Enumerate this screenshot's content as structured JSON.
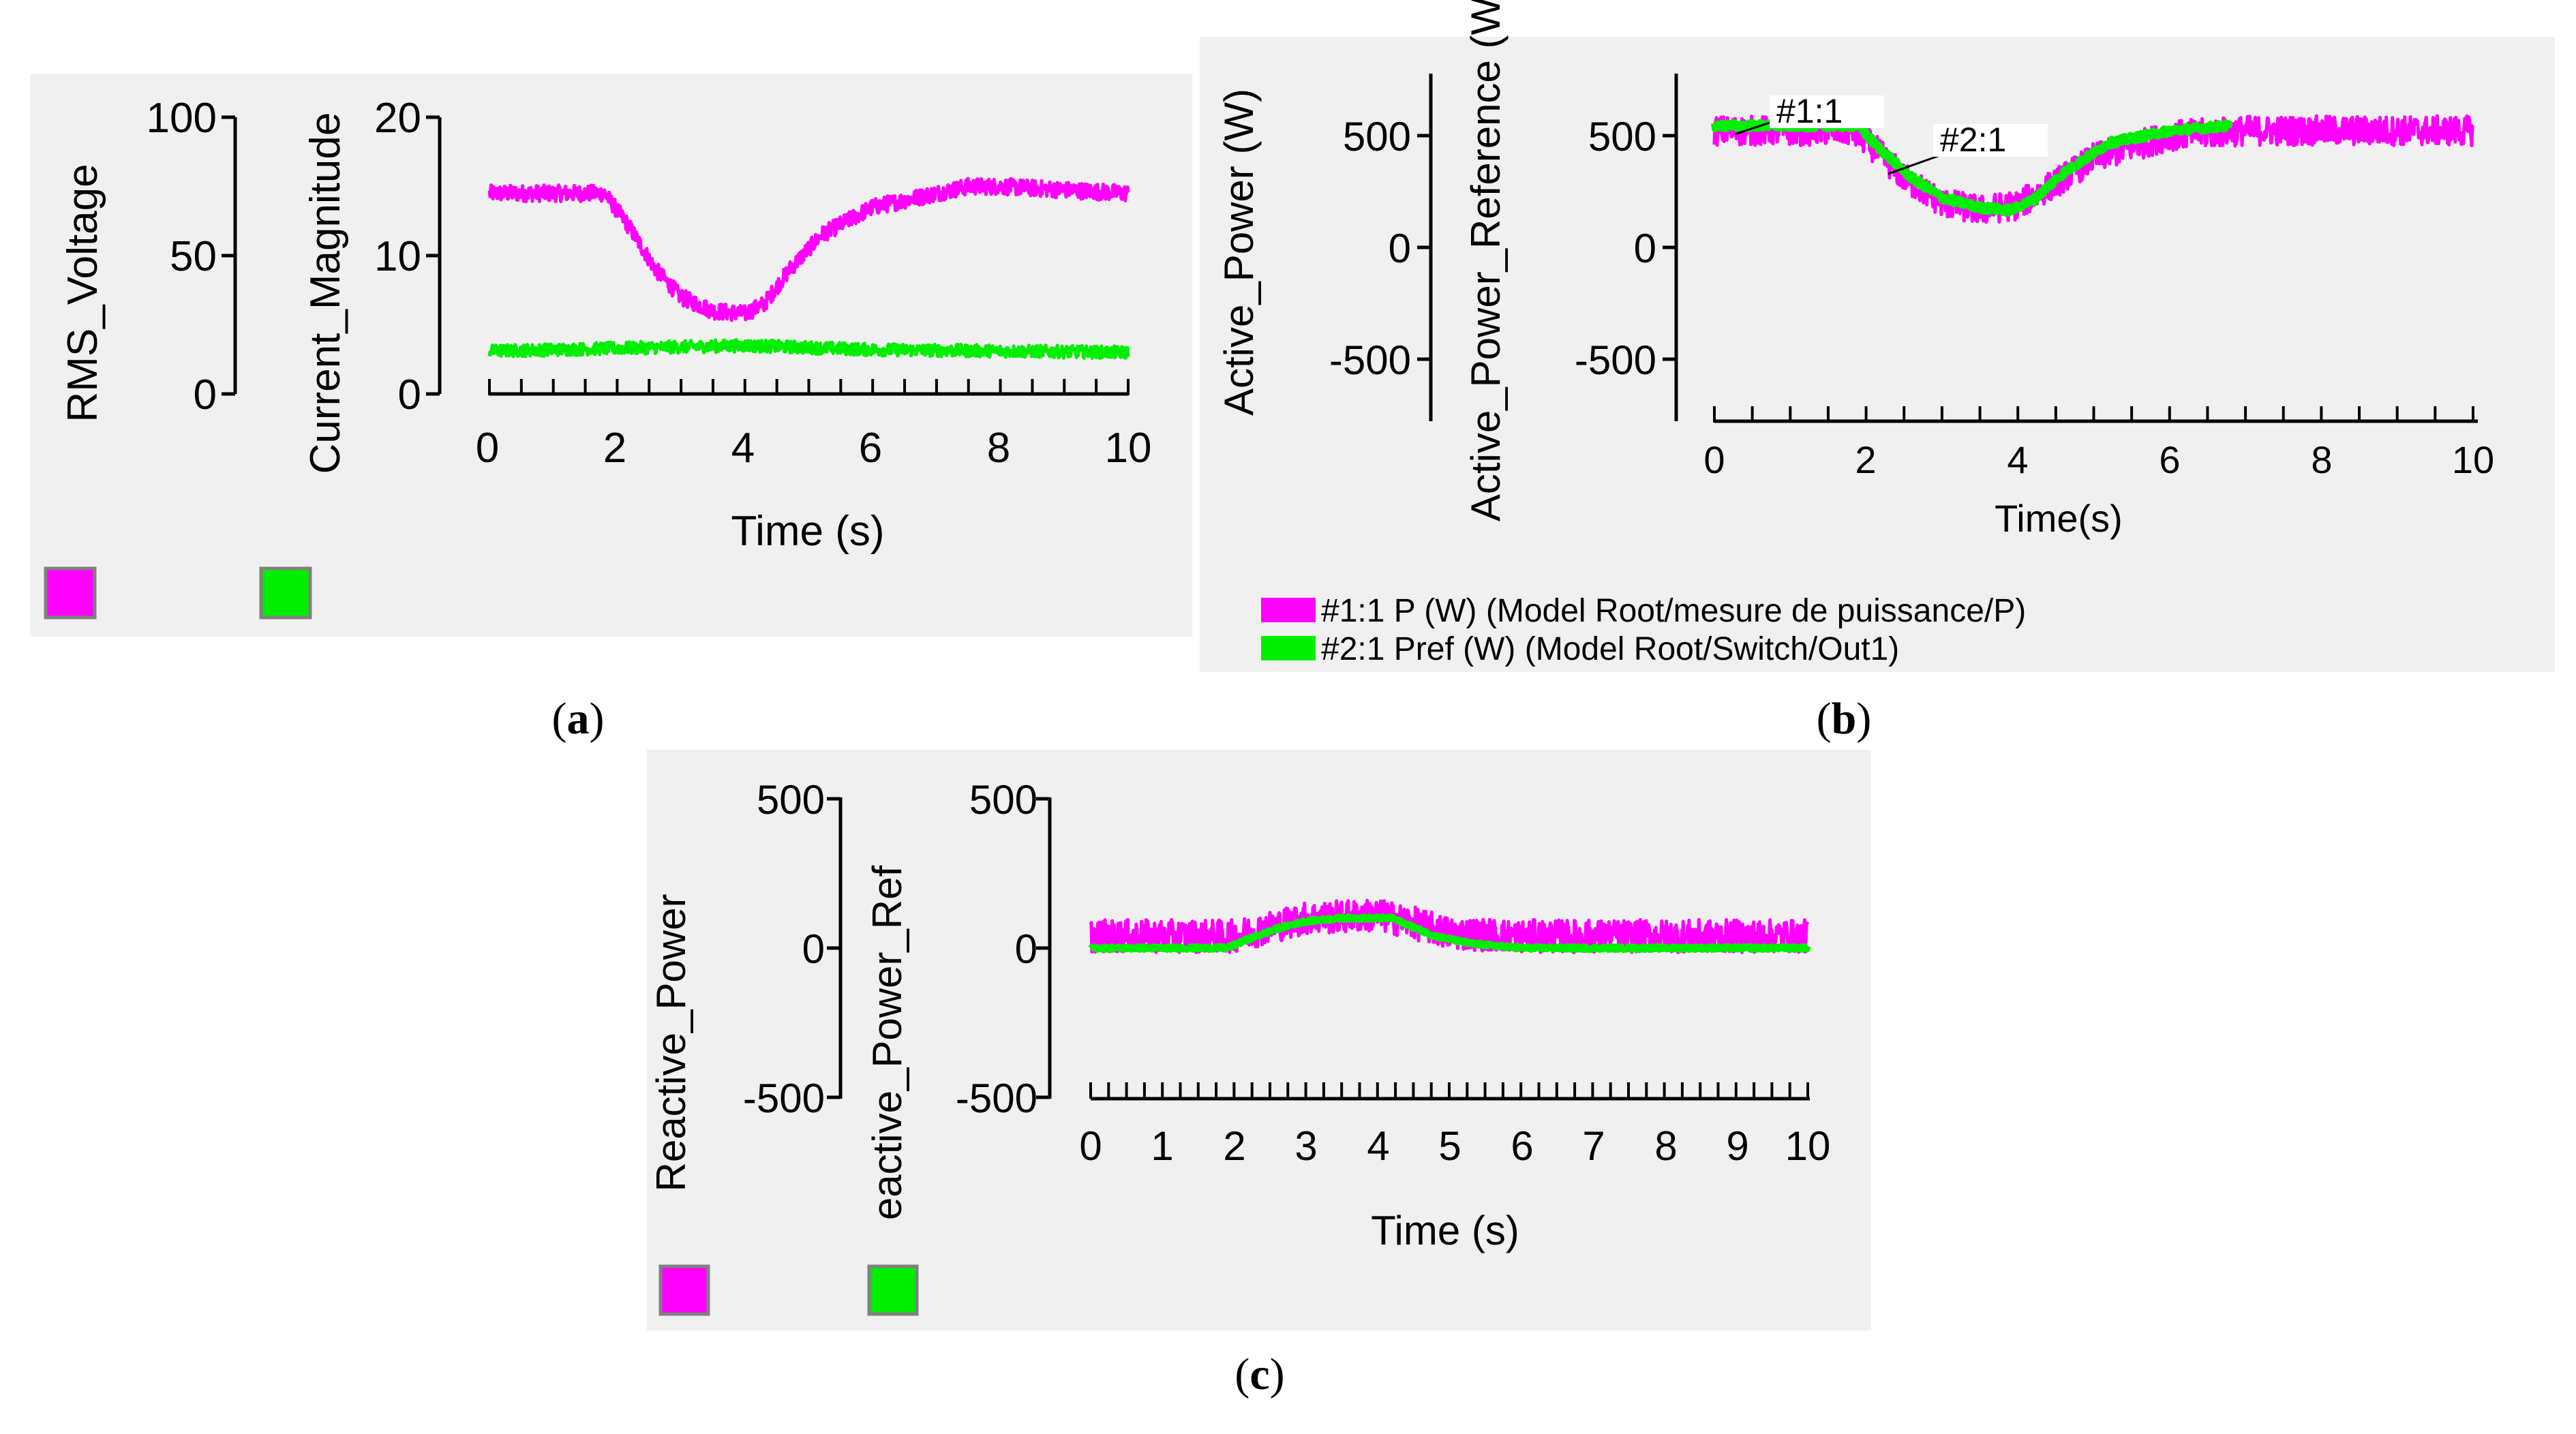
{
  "chart_data": [
    {
      "id": "a",
      "type": "line",
      "caption": "a",
      "xlabel": "Time (s)",
      "xlim": [
        0,
        10
      ],
      "x_ticks": [
        0,
        2,
        4,
        6,
        8,
        10
      ],
      "axes": [
        {
          "label": "RMS_Voltage",
          "ylim": [
            0,
            100
          ],
          "ticks": [
            0,
            50,
            100
          ]
        },
        {
          "label": "Current_Magnitude",
          "ylim": [
            0,
            20
          ],
          "ticks": [
            0,
            10,
            20
          ]
        }
      ],
      "series": [
        {
          "name": "RMS_Voltage",
          "color": "#ff00ff",
          "noise": 0.6,
          "x": [
            0,
            1,
            1.8,
            2.2,
            2.6,
            3.0,
            3.5,
            4.0,
            4.3,
            4.7,
            5.2,
            6.0,
            7.0,
            7.5,
            8.0,
            10
          ],
          "y": [
            14.5,
            14.5,
            14.5,
            12,
            9,
            7,
            6,
            5.8,
            6.5,
            9,
            11.5,
            13.5,
            14.5,
            15,
            15,
            14.5
          ]
        },
        {
          "name": "Current_Magnitude",
          "color": "#00ee00",
          "noise": 0.45,
          "x": [
            0,
            2,
            4,
            6,
            10
          ],
          "y": [
            3.1,
            3.3,
            3.5,
            3.2,
            3.0
          ]
        }
      ],
      "legend": [
        {
          "label": "RMS_Voltage",
          "color": "#ff00ff"
        },
        {
          "label": "Current_Magnitude",
          "color": "#00ee00"
        }
      ]
    },
    {
      "id": "b",
      "type": "line",
      "caption": "b",
      "xlabel": "Time(s)",
      "xlim": [
        0,
        10
      ],
      "x_ticks": [
        0,
        2,
        4,
        6,
        8,
        10
      ],
      "axes": [
        {
          "label": "Active_Power (W)",
          "ylim": [
            -700,
            700
          ],
          "ticks": [
            -500,
            0,
            500
          ]
        },
        {
          "label": "Active_Power_Reference (W)",
          "ylim": [
            -700,
            700
          ],
          "ticks": [
            -500,
            0,
            500
          ]
        }
      ],
      "series": [
        {
          "name": "#1:1 P (W) (Model Root/mesure de puissance/P)",
          "color": "#ff00ff",
          "noise": 60,
          "x": [
            0,
            1.8,
            2.0,
            2.5,
            3.0,
            3.5,
            4.0,
            4.5,
            5.0,
            6.0,
            7.0,
            10
          ],
          "y": [
            470,
            470,
            430,
            280,
            180,
            150,
            170,
            260,
            360,
            450,
            470,
            470
          ]
        },
        {
          "name": "#2:1 Pref (W) (Model Root/Switch/Out1)",
          "color": "#00ee00",
          "noise": 14,
          "x": [
            0,
            1.9,
            2.1,
            2.6,
            3.0,
            3.5,
            3.9,
            4.2,
            4.6,
            5.2,
            6.0,
            6.8
          ],
          "y": [
            490,
            490,
            420,
            280,
            200,
            160,
            150,
            190,
            300,
            420,
            470,
            490
          ]
        }
      ],
      "markers": [
        {
          "text": "#1:1",
          "x": 0.75,
          "y": 500
        },
        {
          "text": "#2:1",
          "x": 2.4,
          "y": 400
        }
      ],
      "legend": [
        {
          "label": "#1:1 P (W) (Model Root/mesure de puissance/P)",
          "color": "#ff00ff"
        },
        {
          "label": "#2:1 Pref (W) (Model Root/Switch/Out1)",
          "color": "#00ee00"
        }
      ]
    },
    {
      "id": "c",
      "type": "line",
      "caption": "c",
      "xlabel": "Time (s)",
      "xlim": [
        0,
        10
      ],
      "x_ticks": [
        0,
        1,
        2,
        3,
        4,
        5,
        6,
        7,
        8,
        9,
        10
      ],
      "axes": [
        {
          "label": "Reactive_Power",
          "ylim": [
            -500,
            500
          ],
          "ticks": [
            -500,
            0,
            500
          ]
        },
        {
          "label": "eactive_Power_Ref",
          "ylim": [
            -500,
            500
          ],
          "ticks": [
            -500,
            0,
            500
          ]
        }
      ],
      "series": [
        {
          "name": "Reactive_Power",
          "color": "#ff00ff",
          "noise": 55,
          "x": [
            0,
            2,
            2.5,
            3,
            4,
            4.4,
            5,
            6,
            10
          ],
          "y": [
            40,
            40,
            70,
            100,
            110,
            90,
            50,
            40,
            40
          ]
        },
        {
          "name": "Reactive_Power_Ref",
          "color": "#00ee00",
          "noise": 6,
          "x": [
            0,
            1.9,
            2.2,
            2.6,
            3.0,
            3.5,
            4.2,
            4.4,
            4.8,
            5.3,
            6.0,
            10
          ],
          "y": [
            0,
            0,
            30,
            65,
            90,
            100,
            100,
            80,
            40,
            15,
            0,
            0
          ]
        }
      ],
      "legend": [
        {
          "label": "Reactive_Power",
          "color": "#ff00ff"
        },
        {
          "label": "eactive_Power_Ref",
          "color": "#00ee00"
        }
      ]
    }
  ]
}
